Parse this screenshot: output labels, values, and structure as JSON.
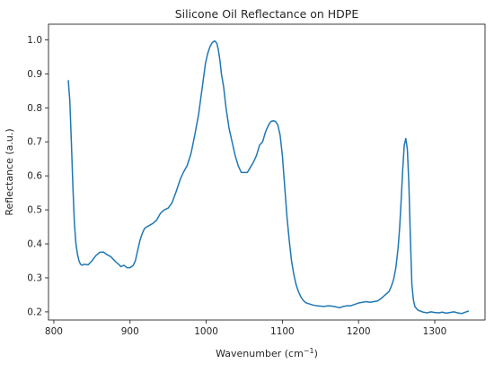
{
  "chart_data": {
    "type": "line",
    "title": "Silicone Oil Reflectance on HDPE",
    "xlabel_main": "Wavenumber (cm",
    "xlabel_sup": "−1",
    "xlabel_close": ")",
    "ylabel": "Reflectance (a.u.)",
    "xlim": [
      793,
      1366
    ],
    "ylim": [
      0.176,
      1.046
    ],
    "x_ticks": [
      800,
      900,
      1000,
      1100,
      1200,
      1300
    ],
    "x_tick_labels": [
      "800",
      "900",
      "1000",
      "1100",
      "1200",
      "1300"
    ],
    "y_ticks": [
      0.2,
      0.3,
      0.4,
      0.5,
      0.6,
      0.7,
      0.8,
      0.9,
      1.0
    ],
    "y_tick_labels": [
      "0.2",
      "0.3",
      "0.4",
      "0.5",
      "0.6",
      "0.7",
      "0.8",
      "0.9",
      "1.0"
    ],
    "grid": false,
    "line_color": "#1f77b4",
    "series": [
      {
        "x": [
          819,
          821,
          823,
          825,
          827,
          829,
          831,
          833,
          835,
          837,
          840,
          845,
          850,
          855,
          860,
          865,
          870,
          875,
          880,
          885,
          888,
          892,
          896,
          900,
          904,
          907,
          910,
          913,
          916,
          919,
          922,
          926,
          930,
          935,
          940,
          945,
          950,
          955,
          960,
          963,
          966,
          970,
          975,
          980,
          985,
          990,
          993,
          996,
          999,
          1002,
          1005,
          1008,
          1011,
          1014,
          1016,
          1018,
          1020,
          1023,
          1026,
          1030,
          1034,
          1038,
          1042,
          1046,
          1050,
          1054,
          1058,
          1062,
          1066,
          1070,
          1074,
          1078,
          1082,
          1085,
          1088,
          1091,
          1094,
          1097,
          1100,
          1103,
          1106,
          1109,
          1112,
          1115,
          1118,
          1121,
          1124,
          1127,
          1130,
          1133,
          1136,
          1140,
          1145,
          1150,
          1155,
          1160,
          1165,
          1170,
          1175,
          1180,
          1185,
          1190,
          1195,
          1200,
          1205,
          1210,
          1215,
          1220,
          1225,
          1230,
          1235,
          1240,
          1243,
          1246,
          1249,
          1252,
          1254,
          1256,
          1258,
          1260,
          1262,
          1264,
          1266,
          1268,
          1270,
          1272,
          1274,
          1278,
          1285,
          1290,
          1295,
          1300,
          1305,
          1310,
          1315,
          1320,
          1325,
          1330,
          1335,
          1340,
          1344
        ],
        "y": [
          0.88,
          0.82,
          0.7,
          0.57,
          0.46,
          0.4,
          0.37,
          0.35,
          0.34,
          0.337,
          0.34,
          0.338,
          0.35,
          0.365,
          0.375,
          0.376,
          0.368,
          0.362,
          0.35,
          0.34,
          0.333,
          0.337,
          0.33,
          0.33,
          0.336,
          0.35,
          0.38,
          0.41,
          0.43,
          0.445,
          0.45,
          0.455,
          0.46,
          0.47,
          0.49,
          0.5,
          0.505,
          0.52,
          0.55,
          0.57,
          0.59,
          0.61,
          0.63,
          0.665,
          0.72,
          0.78,
          0.83,
          0.88,
          0.93,
          0.96,
          0.98,
          0.992,
          0.997,
          0.99,
          0.97,
          0.94,
          0.9,
          0.86,
          0.8,
          0.74,
          0.7,
          0.66,
          0.63,
          0.61,
          0.61,
          0.61,
          0.625,
          0.64,
          0.66,
          0.69,
          0.7,
          0.73,
          0.75,
          0.76,
          0.762,
          0.76,
          0.75,
          0.72,
          0.66,
          0.57,
          0.48,
          0.41,
          0.35,
          0.31,
          0.28,
          0.26,
          0.245,
          0.235,
          0.228,
          0.225,
          0.223,
          0.22,
          0.218,
          0.217,
          0.216,
          0.218,
          0.217,
          0.215,
          0.212,
          0.216,
          0.218,
          0.218,
          0.222,
          0.226,
          0.228,
          0.23,
          0.228,
          0.23,
          0.232,
          0.24,
          0.25,
          0.26,
          0.275,
          0.295,
          0.33,
          0.39,
          0.45,
          0.53,
          0.62,
          0.69,
          0.71,
          0.68,
          0.58,
          0.42,
          0.28,
          0.235,
          0.215,
          0.205,
          0.199,
          0.197,
          0.2,
          0.198,
          0.197,
          0.199,
          0.196,
          0.198,
          0.2,
          0.197,
          0.195,
          0.199,
          0.202
        ]
      }
    ]
  }
}
